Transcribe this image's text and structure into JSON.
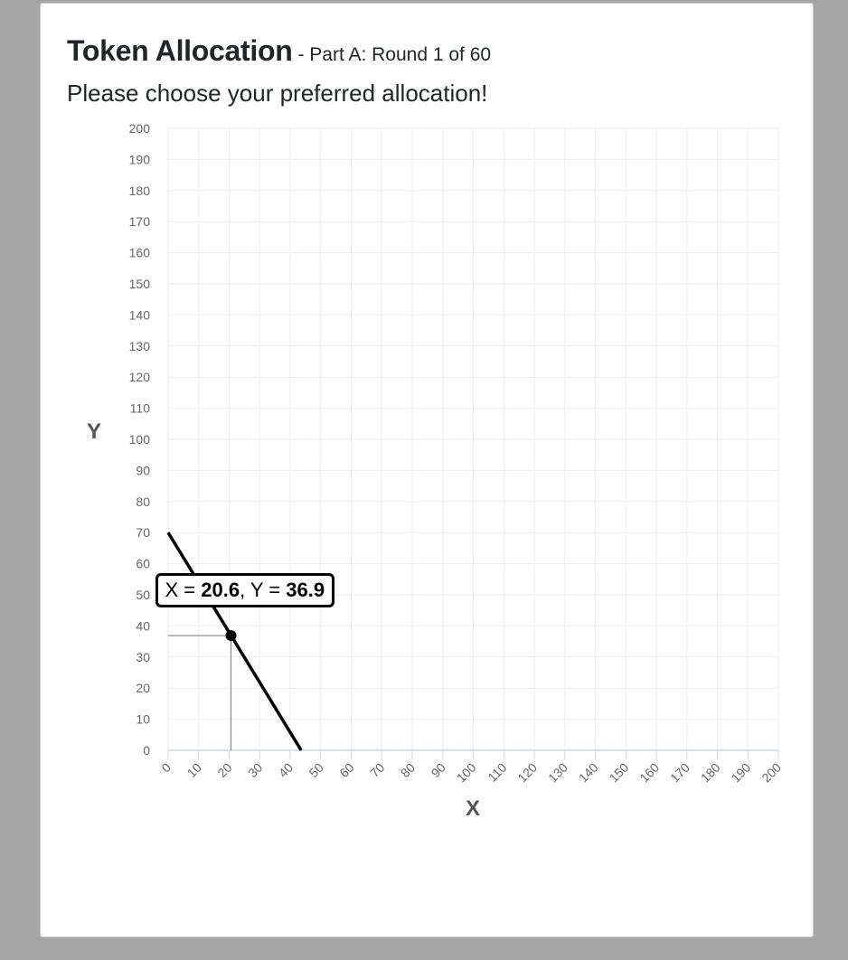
{
  "header": {
    "title": "Token Allocation",
    "subtitle": "- Part A: Round 1 of 60",
    "prompt": "Please choose your preferred allocation!"
  },
  "tooltip": {
    "x_prefix": "X = ",
    "x_value": "20.6",
    "y_prefix": ", Y = ",
    "y_value": "36.9"
  },
  "colors": {
    "background": "#a6a6a6",
    "panel": "#ffffff",
    "grid": "#eeeef4",
    "axis": "#ccd6eb",
    "budget_line": "#000000"
  },
  "chart_data": {
    "type": "line",
    "xlabel": "X",
    "ylabel": "Y",
    "xlim": [
      0,
      200
    ],
    "ylim": [
      0,
      200
    ],
    "x_tick_step": 10,
    "y_tick_step": 10,
    "grid": true,
    "series": [
      {
        "x": [
          0,
          43.6
        ],
        "y": [
          70,
          0
        ]
      }
    ],
    "selected_point": {
      "x": 20.6,
      "y": 36.9
    }
  }
}
